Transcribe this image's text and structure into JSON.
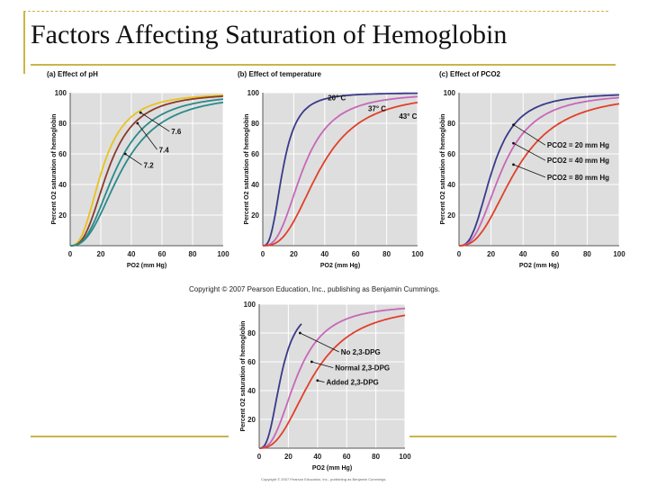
{
  "slide": {
    "title": "Factors Affecting Saturation of Hemoglobin",
    "copyright": "Copyright © 2007 Pearson Education, Inc., publishing as Benjamin Cummings.",
    "copyright_small": "Copyright © 2007 Pearson Education, Inc., publishing as Benjamin Cummings."
  },
  "colors": {
    "yellow": "#e8c21e",
    "brown": "#8a3a2a",
    "teal": "#2b8a8a",
    "navy": "#3a3a8a",
    "pink": "#c668b8",
    "red": "#e0402a"
  },
  "chart_data": [
    {
      "type": "line",
      "title": "(a) Effect of pH",
      "xlabel": "PO2 (mm Hg)",
      "ylabel": "Percent O2 saturation of hemoglobin",
      "xlim": [
        0,
        100
      ],
      "ylim": [
        0,
        100
      ],
      "x_ticks": [
        0,
        20,
        40,
        60,
        80,
        100
      ],
      "y_ticks": [
        20,
        40,
        60,
        80,
        100
      ],
      "series": [
        {
          "name": "7.6",
          "color": "yellow",
          "p50": 21,
          "n": 2.6
        },
        {
          "name": "",
          "color": "brown",
          "p50": 25,
          "n": 2.7
        },
        {
          "name": "7.4",
          "color": "teal",
          "p50": 30,
          "n": 2.6
        },
        {
          "name": "7.2",
          "color": "teal",
          "p50": 34,
          "n": 2.5
        }
      ],
      "annotations": [
        {
          "text": "7.6",
          "x": 66,
          "y": 73,
          "arrow_to": [
            46,
            87
          ]
        },
        {
          "text": "7.4",
          "x": 58,
          "y": 61,
          "arrow_to": [
            44,
            80
          ]
        },
        {
          "text": "7.2",
          "x": 48,
          "y": 51,
          "arrow_to": [
            36,
            60
          ]
        }
      ]
    },
    {
      "type": "line",
      "title": "(b) Effect of temperature",
      "xlabel": "PO2 (mm Hg)",
      "ylabel": "Percent O2 saturation of hemoglobin",
      "xlim": [
        0,
        100
      ],
      "ylim": [
        0,
        100
      ],
      "x_ticks": [
        0,
        20,
        40,
        60,
        80,
        100
      ],
      "y_ticks": [
        20,
        40,
        60,
        80,
        100
      ],
      "series": [
        {
          "name": "20° C",
          "color": "navy",
          "p50": 13,
          "n": 2.8
        },
        {
          "name": "37° C",
          "color": "pink",
          "p50": 26,
          "n": 2.7
        },
        {
          "name": "43° C",
          "color": "red",
          "p50": 37,
          "n": 2.7
        }
      ],
      "annotations": [
        {
          "text": "20° C",
          "x": 42,
          "y": 95
        },
        {
          "text": "37° C",
          "x": 68,
          "y": 88
        },
        {
          "text": "43° C",
          "x": 88,
          "y": 83
        }
      ]
    },
    {
      "type": "line",
      "title": "(c) Effect of PCO2",
      "xlabel": "PO2 (mm Hg)",
      "ylabel": "Percent O2 saturation of hemoglobin",
      "xlim": [
        0,
        100
      ],
      "ylim": [
        0,
        100
      ],
      "x_ticks": [
        0,
        20,
        40,
        60,
        80,
        100
      ],
      "y_ticks": [
        20,
        40,
        60,
        80,
        100
      ],
      "series": [
        {
          "name": "PCO2 = 20 mm Hg",
          "color": "navy",
          "p50": 21,
          "n": 2.7
        },
        {
          "name": "PCO2 = 40 mm Hg",
          "color": "pink",
          "p50": 27,
          "n": 2.6
        },
        {
          "name": "PCO2 = 80 mm Hg",
          "color": "red",
          "p50": 36,
          "n": 2.5
        }
      ],
      "annotations": [
        {
          "text": "PCO2 = 20 mm Hg",
          "x": 55,
          "y": 64,
          "arrow_to": [
            34,
            79
          ]
        },
        {
          "text": "PCO2 = 40 mm Hg",
          "x": 55,
          "y": 54,
          "arrow_to": [
            34,
            67
          ]
        },
        {
          "text": "PCO2 = 80 mm Hg",
          "x": 55,
          "y": 43,
          "arrow_to": [
            34,
            53
          ]
        }
      ]
    },
    {
      "type": "line",
      "title": "",
      "xlabel": "PO2 (mm Hg)",
      "ylabel": "Percent O2 saturation of hemoglobin",
      "xlim": [
        0,
        100
      ],
      "ylim": [
        0,
        100
      ],
      "x_ticks": [
        0,
        20,
        40,
        60,
        80,
        100
      ],
      "y_ticks": [
        20,
        40,
        60,
        80,
        100
      ],
      "series": [
        {
          "name": "No 2,3-DPG",
          "color": "navy",
          "p50": 15,
          "n": 2.8,
          "xmax": 29
        },
        {
          "name": "Normal 2,3-DPG",
          "color": "pink",
          "p50": 26,
          "n": 2.6
        },
        {
          "name": "Added 2,3-DPG",
          "color": "red",
          "p50": 37,
          "n": 2.5
        }
      ],
      "annotations": [
        {
          "text": "No 2,3-DPG",
          "x": 56,
          "y": 65,
          "arrow_to": [
            28,
            80
          ]
        },
        {
          "text": "Normal 2,3-DPG",
          "x": 52,
          "y": 54,
          "arrow_to": [
            36,
            60
          ]
        },
        {
          "text": "Added 2,3-DPG",
          "x": 46,
          "y": 44,
          "arrow_to": [
            40,
            47
          ]
        }
      ]
    }
  ]
}
